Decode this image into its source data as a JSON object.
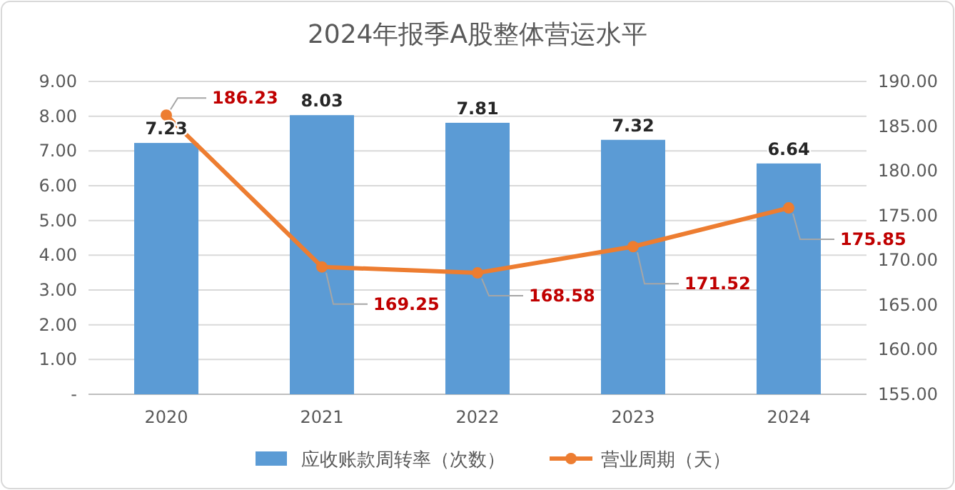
{
  "chart_data": {
    "type": "bar",
    "title": "2024年报季A股整体营运水平",
    "categories": [
      "2020",
      "2021",
      "2022",
      "2023",
      "2024"
    ],
    "series": [
      {
        "name": "应收账款周转率（次数）",
        "color": "#5b9bd5",
        "values": [
          7.23,
          8.03,
          7.81,
          7.32,
          6.64
        ]
      },
      {
        "name": "营业周期（天）",
        "type": "line",
        "axis": "y2",
        "color": "#ed7d31",
        "values": [
          186.23,
          169.25,
          168.58,
          171.52,
          175.85
        ]
      }
    ],
    "ylim": [
      0,
      9
    ],
    "yticks": [
      {
        "value": 0,
        "label": "-"
      },
      {
        "value": 1,
        "label": "1.00"
      },
      {
        "value": 2,
        "label": "2.00"
      },
      {
        "value": 3,
        "label": "3.00"
      },
      {
        "value": 4,
        "label": "4.00"
      },
      {
        "value": 5,
        "label": "5.00"
      },
      {
        "value": 6,
        "label": "6.00"
      },
      {
        "value": 7,
        "label": "7.00"
      },
      {
        "value": 8,
        "label": "8.00"
      },
      {
        "value": 9,
        "label": "9.00"
      }
    ],
    "y2lim": [
      155,
      190
    ],
    "y2ticks": [
      {
        "value": 155,
        "label": "155.00"
      },
      {
        "value": 160,
        "label": "160.00"
      },
      {
        "value": 165,
        "label": "165.00"
      },
      {
        "value": 170,
        "label": "170.00"
      },
      {
        "value": 175,
        "label": "175.00"
      },
      {
        "value": 180,
        "label": "180.00"
      },
      {
        "value": 185,
        "label": "185.00"
      },
      {
        "value": 190,
        "label": "190.00"
      }
    ],
    "grid": "y",
    "legend": "bottom",
    "marker": "circle",
    "line_style": "solid",
    "data_labels": true
  }
}
